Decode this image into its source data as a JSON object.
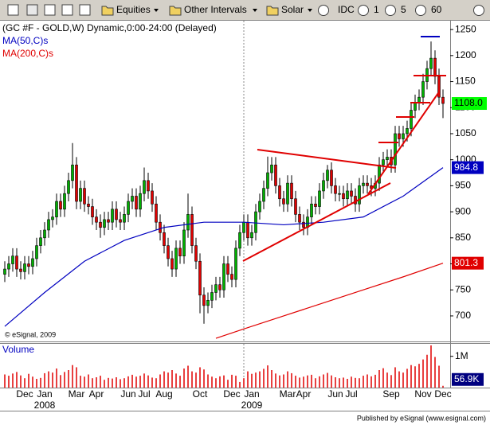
{
  "toolbar": {
    "items": [
      "Equities",
      "Other Intervals",
      "Solar",
      "IDC",
      "1",
      "5",
      "60"
    ]
  },
  "footer": "Published by eSignal (www.esignal.com)",
  "chart_data": {
    "type": "candlestick",
    "title": "(GC #F - GOLD,W) Dynamic,0:00-24:00 (Delayed)",
    "copyright": "© eSignal, 2009",
    "categories": [
      null,
      null,
      null,
      null,
      null,
      "Dec",
      null,
      null,
      null,
      null,
      "Jan",
      null,
      null,
      null,
      null,
      null,
      null,
      null,
      "Mar",
      null,
      null,
      null,
      null,
      "Apr",
      null,
      null,
      null,
      null,
      null,
      null,
      null,
      "Jun",
      null,
      null,
      null,
      "Jul",
      null,
      null,
      null,
      null,
      "Aug",
      null,
      null,
      null,
      null,
      null,
      null,
      null,
      null,
      "Oct",
      null,
      null,
      null,
      null,
      null,
      null,
      null,
      "Dec",
      null,
      null,
      null,
      null,
      "Jan",
      null,
      null,
      null,
      null,
      null,
      null,
      null,
      null,
      "Mar",
      null,
      null,
      null,
      "Apr",
      null,
      null,
      null,
      null,
      null,
      null,
      null,
      "Jun",
      null,
      null,
      null,
      "Jul",
      null,
      null,
      null,
      null,
      null,
      null,
      null,
      null,
      null,
      "Sep",
      null,
      null,
      null,
      null,
      null,
      null,
      null,
      "Nov",
      null,
      null,
      null,
      null,
      "Dec"
    ],
    "years": [
      null,
      null,
      null,
      null,
      null,
      null,
      null,
      null,
      null,
      null,
      "2008",
      null,
      null,
      null,
      null,
      null,
      null,
      null,
      null,
      null,
      null,
      null,
      null,
      null,
      null,
      null,
      null,
      null,
      null,
      null,
      null,
      null,
      null,
      null,
      null,
      null,
      null,
      null,
      null,
      null,
      null,
      null,
      null,
      null,
      null,
      null,
      null,
      null,
      null,
      null,
      null,
      null,
      null,
      null,
      null,
      null,
      null,
      null,
      null,
      null,
      null,
      null,
      "2009",
      null,
      null,
      null,
      null,
      null,
      null,
      null,
      null,
      null,
      null,
      null,
      null,
      null,
      null,
      null,
      null,
      null,
      null,
      null,
      null,
      null,
      null,
      null,
      null,
      null,
      null,
      null,
      null,
      null,
      null,
      null,
      null,
      null,
      null,
      null,
      null,
      null,
      null,
      null,
      null,
      null,
      null,
      null,
      null,
      null,
      null,
      null,
      null
    ],
    "open": [
      780,
      790,
      800,
      815,
      790,
      785,
      800,
      795,
      810,
      835,
      850,
      865,
      885,
      890,
      920,
      905,
      935,
      960,
      990,
      920,
      945,
      915,
      910,
      890,
      880,
      870,
      885,
      880,
      905,
      885,
      880,
      895,
      920,
      930,
      905,
      935,
      960,
      940,
      915,
      880,
      860,
      835,
      810,
      790,
      830,
      815,
      865,
      895,
      835,
      805,
      740,
      720,
      730,
      745,
      760,
      750,
      800,
      780,
      770,
      830,
      860,
      880,
      850,
      860,
      900,
      920,
      945,
      975,
      990,
      950,
      925,
      915,
      955,
      925,
      895,
      880,
      870,
      890,
      915,
      910,
      940,
      960,
      980,
      950,
      935,
      935,
      925,
      940,
      930,
      915,
      950,
      955,
      950,
      945,
      955,
      990,
      1000,
      1005,
      990,
      1050,
      1040,
      1050,
      1060,
      1095,
      1110,
      1120,
      1150,
      1175,
      1195,
      1160,
      1120
    ],
    "high": [
      805,
      815,
      830,
      830,
      805,
      815,
      815,
      825,
      850,
      865,
      880,
      900,
      905,
      935,
      935,
      950,
      975,
      1032,
      1005,
      960,
      960,
      930,
      925,
      905,
      895,
      900,
      900,
      920,
      920,
      900,
      910,
      935,
      945,
      945,
      950,
      985,
      975,
      955,
      930,
      895,
      875,
      850,
      825,
      845,
      845,
      880,
      935,
      910,
      850,
      820,
      755,
      745,
      760,
      775,
      775,
      815,
      815,
      795,
      845,
      875,
      895,
      895,
      875,
      915,
      935,
      960,
      1006,
      1005,
      1005,
      965,
      940,
      970,
      970,
      940,
      910,
      895,
      905,
      930,
      930,
      955,
      975,
      990,
      995,
      965,
      950,
      950,
      955,
      955,
      945,
      965,
      970,
      970,
      965,
      970,
      1005,
      1015,
      1020,
      1020,
      1065,
      1065,
      1065,
      1075,
      1110,
      1125,
      1135,
      1165,
      1190,
      1227,
      1210,
      1175,
      1135
    ],
    "low": [
      765,
      775,
      785,
      775,
      770,
      770,
      780,
      780,
      795,
      820,
      835,
      850,
      870,
      875,
      890,
      890,
      920,
      945,
      905,
      905,
      900,
      895,
      875,
      865,
      850,
      855,
      865,
      865,
      870,
      865,
      865,
      880,
      905,
      890,
      890,
      920,
      925,
      900,
      865,
      845,
      820,
      795,
      775,
      775,
      800,
      800,
      850,
      820,
      790,
      705,
      685,
      705,
      715,
      730,
      735,
      735,
      765,
      755,
      755,
      815,
      845,
      835,
      835,
      845,
      885,
      905,
      930,
      960,
      935,
      910,
      900,
      900,
      910,
      880,
      865,
      855,
      855,
      875,
      895,
      895,
      925,
      945,
      935,
      920,
      920,
      910,
      910,
      915,
      900,
      900,
      935,
      935,
      930,
      930,
      940,
      975,
      985,
      975,
      975,
      1025,
      1025,
      1035,
      1045,
      1080,
      1095,
      1105,
      1135,
      1160,
      1145,
      1105,
      1080
    ],
    "close": [
      790,
      800,
      815,
      790,
      785,
      800,
      795,
      810,
      835,
      850,
      865,
      885,
      890,
      920,
      905,
      935,
      960,
      990,
      920,
      945,
      915,
      910,
      890,
      880,
      870,
      885,
      880,
      905,
      885,
      880,
      895,
      920,
      930,
      905,
      935,
      960,
      940,
      915,
      880,
      860,
      835,
      810,
      790,
      830,
      815,
      865,
      895,
      835,
      805,
      740,
      720,
      730,
      745,
      760,
      750,
      800,
      780,
      770,
      830,
      860,
      880,
      850,
      860,
      900,
      920,
      945,
      975,
      990,
      950,
      925,
      915,
      955,
      925,
      895,
      880,
      870,
      890,
      915,
      910,
      940,
      960,
      980,
      950,
      935,
      935,
      925,
      940,
      930,
      915,
      950,
      955,
      950,
      945,
      955,
      990,
      1000,
      1005,
      990,
      1050,
      1040,
      1050,
      1060,
      1095,
      1110,
      1120,
      1150,
      1175,
      1195,
      1160,
      1120,
      1108.0
    ],
    "close_label": "1108.0",
    "up_color": "#00b000",
    "down_color": "#e00000",
    "label_color": "#00ff00",
    "series": [
      {
        "name": "MA(50,C)s",
        "color": "#0000c0",
        "x": [
          0,
          10,
          20,
          30,
          40,
          50,
          60,
          70,
          80,
          90,
          100,
          110
        ],
        "values": [
          680,
          745,
          805,
          845,
          870,
          880,
          880,
          875,
          880,
          890,
          930,
          984.8
        ],
        "end_label": "984.8"
      },
      {
        "name": "MA(200,C)s",
        "color": "#e00000",
        "x": [
          53,
          60,
          70,
          80,
          90,
          100,
          110
        ],
        "values": [
          657,
          675,
          700,
          725,
          750,
          775,
          801.3
        ],
        "end_label": "801.3"
      }
    ],
    "ylim": [
      651,
      1267
    ],
    "yticks": [
      700,
      750,
      800,
      850,
      900,
      950,
      1000,
      1050,
      1100,
      1150,
      1200,
      1250
    ],
    "volume": {
      "name": "Volume",
      "color": "#e00000",
      "values": [
        420000,
        380000,
        450000,
        500000,
        390000,
        300000,
        440000,
        350000,
        280000,
        310000,
        460000,
        520000,
        480000,
        610000,
        400000,
        500000,
        560000,
        720000,
        650000,
        380000,
        350000,
        420000,
        300000,
        330000,
        380000,
        250000,
        310000,
        290000,
        330000,
        270000,
        300000,
        360000,
        410000,
        350000,
        380000,
        450000,
        390000,
        320000,
        300000,
        420000,
        520000,
        480000,
        560000,
        450000,
        380000,
        610000,
        700000,
        520000,
        480000,
        650000,
        580000,
        420000,
        350000,
        300000,
        360000,
        390000,
        250000,
        410000,
        380000,
        180000,
        300000,
        520000,
        440000,
        480000,
        520000,
        600000,
        710000,
        560000,
        450000,
        390000,
        420000,
        520000,
        460000,
        380000,
        320000,
        350000,
        390000,
        410000,
        300000,
        360000,
        420000,
        470000,
        390000,
        330000,
        300000,
        320000,
        280000,
        350000,
        310000,
        300000,
        380000,
        420000,
        360000,
        410000,
        560000,
        620000,
        480000,
        400000,
        650000,
        520000,
        480000,
        600000,
        720000,
        680000,
        760000,
        900000,
        1050000,
        1350000,
        980000,
        700000,
        56900
      ],
      "end_label": "56.9K",
      "ylim": [
        0,
        1400000
      ],
      "yticks": [
        {
          "value": 1000000,
          "label": "1M"
        }
      ]
    }
  }
}
